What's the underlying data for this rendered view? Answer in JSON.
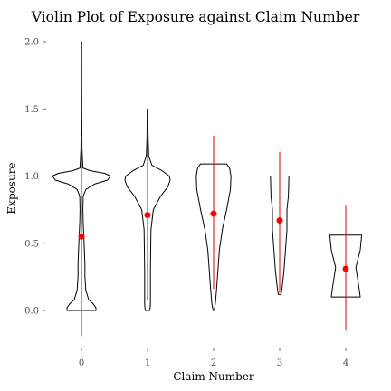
{
  "chart_data": {
    "type": "violin",
    "title": "Violin Plot of Exposure against Claim Number",
    "xlabel": "Claim Number",
    "ylabel": "Exposure",
    "categories": [
      "0",
      "1",
      "2",
      "3",
      "4"
    ],
    "yticks": [
      "0.0",
      "0.5",
      "1.0",
      "1.5",
      "2.0"
    ],
    "ylim": [
      -0.2,
      2.0
    ],
    "grid": false,
    "legend": "none",
    "colors": {
      "violin_outline": "#000000",
      "mean_point": "#ff0000",
      "error_bar": "#e00000"
    },
    "means": [
      0.55,
      0.71,
      0.72,
      0.67,
      0.31
    ],
    "error_bars": [
      {
        "lower": -0.19,
        "upper": 1.3
      },
      {
        "lower": 0.08,
        "upper": 1.31
      },
      {
        "lower": 0.16,
        "upper": 1.3
      },
      {
        "lower": 0.13,
        "upper": 1.18
      },
      {
        "lower": -0.15,
        "upper": 0.78
      }
    ],
    "violins": [
      {
        "category": "0",
        "density": [
          [
            0.0,
            0.5
          ],
          [
            0.02,
            0.5
          ],
          [
            0.05,
            0.4
          ],
          [
            0.08,
            0.25
          ],
          [
            0.15,
            0.15
          ],
          [
            0.25,
            0.12
          ],
          [
            0.35,
            0.12
          ],
          [
            0.45,
            0.1
          ],
          [
            0.55,
            0.08
          ],
          [
            0.65,
            0.06
          ],
          [
            0.75,
            0.05
          ],
          [
            0.85,
            0.06
          ],
          [
            0.9,
            0.15
          ],
          [
            0.94,
            0.45
          ],
          [
            0.97,
            0.9
          ],
          [
            1.0,
            1.0
          ],
          [
            1.02,
            0.8
          ],
          [
            1.04,
            0.3
          ],
          [
            1.06,
            0.05
          ],
          [
            1.2,
            0.02
          ],
          [
            1.5,
            0.01
          ],
          [
            2.0,
            0.005
          ]
        ]
      },
      {
        "category": "1",
        "density": [
          [
            0.0,
            0.08
          ],
          [
            0.05,
            0.1
          ],
          [
            0.15,
            0.1
          ],
          [
            0.3,
            0.1
          ],
          [
            0.45,
            0.11
          ],
          [
            0.6,
            0.12
          ],
          [
            0.75,
            0.2
          ],
          [
            0.85,
            0.45
          ],
          [
            0.92,
            0.7
          ],
          [
            0.97,
            0.78
          ],
          [
            1.0,
            0.75
          ],
          [
            1.04,
            0.5
          ],
          [
            1.08,
            0.15
          ],
          [
            1.15,
            0.04
          ],
          [
            1.3,
            0.02
          ],
          [
            1.5,
            0.01
          ]
        ]
      },
      {
        "category": "2",
        "density": [
          [
            0.0,
            0.02
          ],
          [
            0.05,
            0.06
          ],
          [
            0.15,
            0.1
          ],
          [
            0.3,
            0.15
          ],
          [
            0.45,
            0.2
          ],
          [
            0.6,
            0.3
          ],
          [
            0.75,
            0.45
          ],
          [
            0.9,
            0.58
          ],
          [
            1.0,
            0.6
          ],
          [
            1.06,
            0.55
          ],
          [
            1.09,
            0.45
          ]
        ]
      },
      {
        "category": "3",
        "density": [
          [
            0.12,
            0.05
          ],
          [
            0.2,
            0.1
          ],
          [
            0.3,
            0.15
          ],
          [
            0.45,
            0.2
          ],
          [
            0.6,
            0.25
          ],
          [
            0.75,
            0.25
          ],
          [
            0.85,
            0.3
          ],
          [
            1.0,
            0.32
          ]
        ]
      },
      {
        "category": "4",
        "density": [
          [
            0.1,
            0.5
          ],
          [
            0.18,
            0.45
          ],
          [
            0.25,
            0.4
          ],
          [
            0.32,
            0.35
          ],
          [
            0.38,
            0.42
          ],
          [
            0.45,
            0.5
          ],
          [
            0.56,
            0.55
          ]
        ]
      }
    ]
  }
}
